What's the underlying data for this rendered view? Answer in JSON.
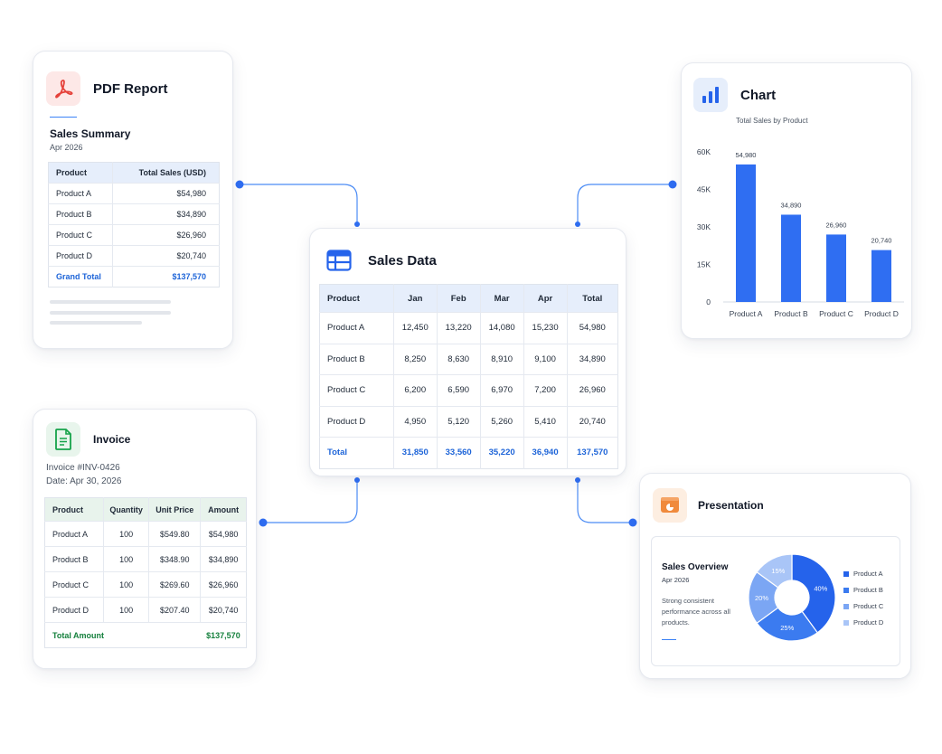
{
  "pdf_report": {
    "title": "PDF Report",
    "icon": "pdf-icon",
    "doc_title": "Sales Summary",
    "doc_date": "Apr 2026",
    "columns": [
      "Product",
      "Total Sales (USD)"
    ],
    "rows": [
      [
        "Product A",
        "$54,980"
      ],
      [
        "Product B",
        "$34,890"
      ],
      [
        "Product C",
        "$26,960"
      ],
      [
        "Product D",
        "$20,740"
      ]
    ],
    "total_label": "Grand Total",
    "total_value": "$137,570"
  },
  "invoice": {
    "title": "Invoice",
    "icon": "invoice-document-icon",
    "number": "Invoice #INV-0426",
    "date": "Date: Apr 30, 2026",
    "columns": [
      "Product",
      "Quantity",
      "Unit Price",
      "Amount"
    ],
    "rows": [
      [
        "Product A",
        "100",
        "$549.80",
        "$54,980"
      ],
      [
        "Product B",
        "100",
        "$348.90",
        "$34,890"
      ],
      [
        "Product C",
        "100",
        "$269.60",
        "$26,960"
      ],
      [
        "Product D",
        "100",
        "$207.40",
        "$20,740"
      ]
    ],
    "total_label": "Total Amount",
    "total_value": "$137,570"
  },
  "sales_data": {
    "title": "Sales Data",
    "icon": "spreadsheet-icon",
    "columns": [
      "Product",
      "Jan",
      "Feb",
      "Mar",
      "Apr",
      "Total"
    ],
    "rows": [
      [
        "Product A",
        "12,450",
        "13,220",
        "14,080",
        "15,230",
        "54,980"
      ],
      [
        "Product B",
        "8,250",
        "8,630",
        "8,910",
        "9,100",
        "34,890"
      ],
      [
        "Product C",
        "6,200",
        "6,590",
        "6,970",
        "7,200",
        "26,960"
      ],
      [
        "Product D",
        "4,950",
        "5,120",
        "5,260",
        "5,410",
        "20,740"
      ]
    ],
    "total_row": [
      "Total",
      "31,850",
      "33,560",
      "35,220",
      "36,940",
      "137,570"
    ]
  },
  "chart_card": {
    "title": "Chart",
    "icon": "bar-chart-icon",
    "chart_data": {
      "type": "bar",
      "title": "Total Sales by Product",
      "categories": [
        "Product A",
        "Product B",
        "Product C",
        "Product D"
      ],
      "values": [
        54980,
        34890,
        26960,
        20740
      ],
      "value_labels": [
        "54,980",
        "34,890",
        "26,960",
        "20,740"
      ],
      "yticks": [
        "0",
        "15K",
        "30K",
        "45K",
        "60K"
      ],
      "ylim": [
        0,
        60000
      ],
      "grid": false,
      "color": "#2f6ef2"
    }
  },
  "presentation": {
    "title": "Presentation",
    "icon": "presentation-icon",
    "slide_title": "Sales Overview",
    "slide_date": "Apr 2026",
    "slide_text": "Strong consistent performance across all products.",
    "chart_data": {
      "type": "pie",
      "categories": [
        "Product A",
        "Product B",
        "Product C",
        "Product D"
      ],
      "values": [
        40,
        25,
        20,
        15
      ],
      "labels": [
        "40%",
        "25%",
        "20%",
        "15%"
      ],
      "colors": [
        "#2563eb",
        "#3b7bf0",
        "#7ba6f4",
        "#a9c5f7"
      ],
      "legend": "right"
    }
  },
  "colors": {
    "accent": "#2563eb",
    "connector": "#3b82f6",
    "pdf_red": "#e5413a",
    "invoice_green": "#16a34a",
    "presentation_orange": "#f08a3c"
  }
}
